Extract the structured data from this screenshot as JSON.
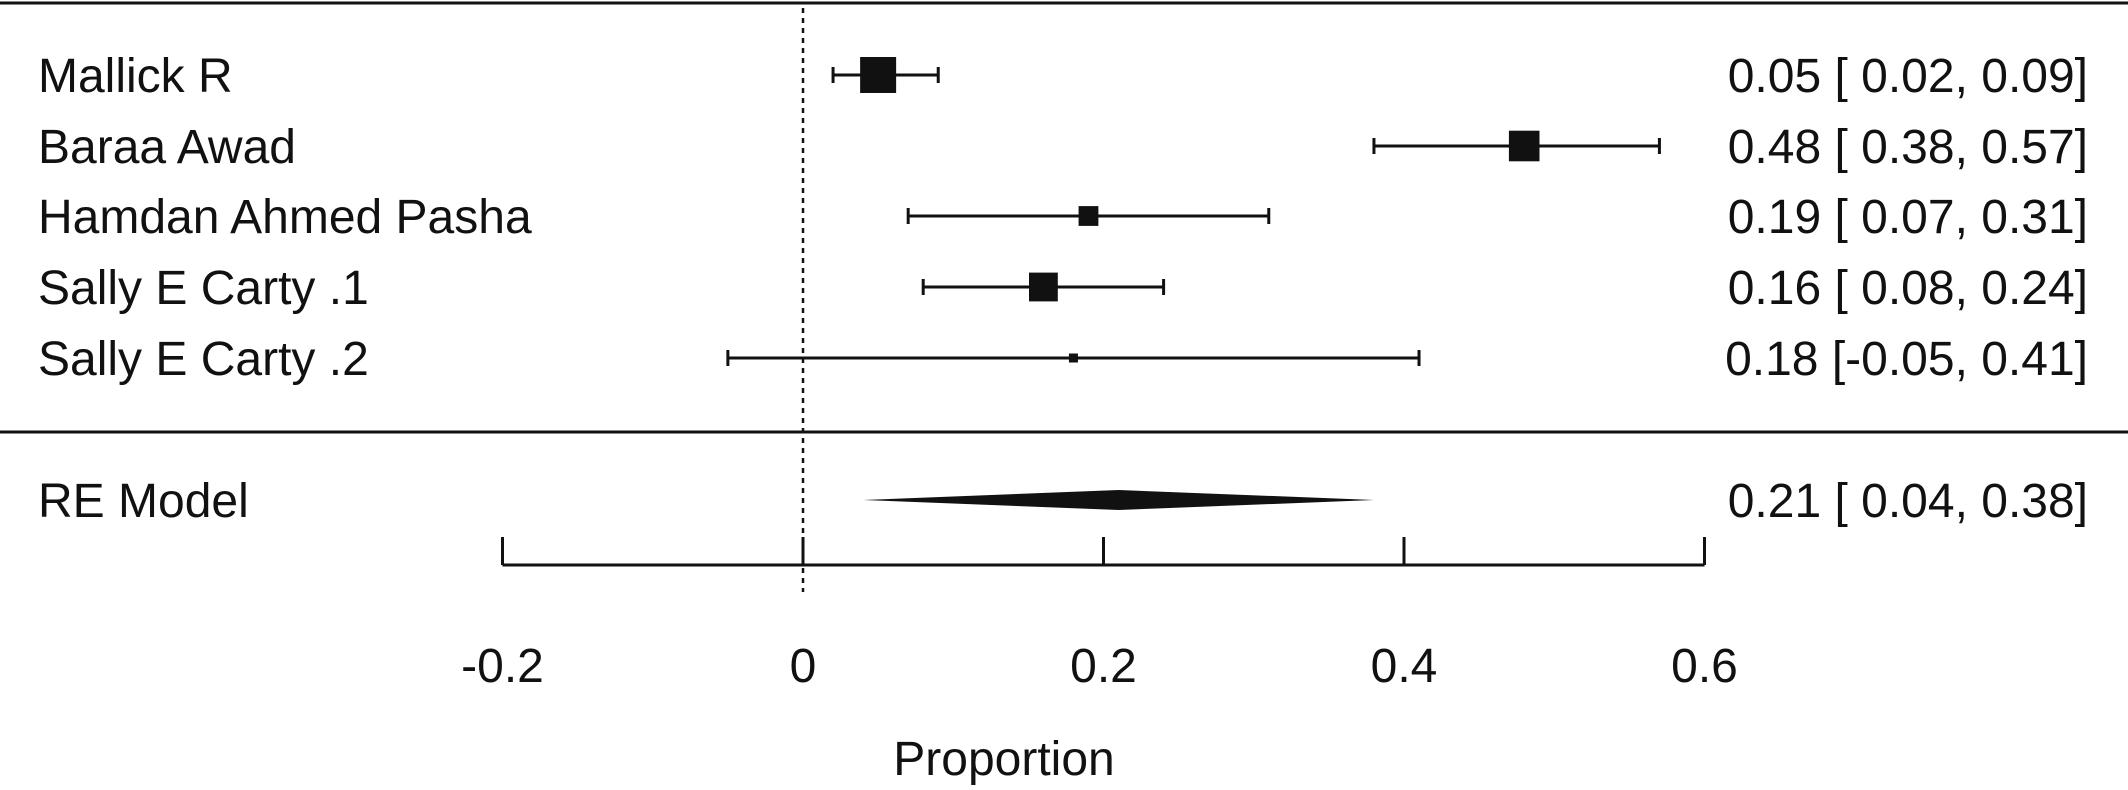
{
  "chart_data": {
    "type": "forest",
    "xlabel": "Proportion",
    "xlim": [
      -0.2,
      0.6
    ],
    "xticks": [
      -0.2,
      0,
      0.2,
      0.4,
      0.6
    ],
    "reference_line": 0,
    "studies": [
      {
        "label": "Mallick R",
        "estimate": 0.05,
        "ci_low": 0.02,
        "ci_high": 0.09,
        "weight": 1.0,
        "text": "0.05 [ 0.02, 0.09]"
      },
      {
        "label": "Baraa Awad",
        "estimate": 0.48,
        "ci_low": 0.38,
        "ci_high": 0.57,
        "weight": 0.85,
        "text": "0.48 [ 0.38, 0.57]"
      },
      {
        "label": "Hamdan Ahmed Pasha",
        "estimate": 0.19,
        "ci_low": 0.07,
        "ci_high": 0.31,
        "weight": 0.55,
        "text": "0.19 [ 0.07, 0.31]"
      },
      {
        "label": "Sally E Carty .1",
        "estimate": 0.16,
        "ci_low": 0.08,
        "ci_high": 0.24,
        "weight": 0.8,
        "text": "0.16 [ 0.08, 0.24]"
      },
      {
        "label": "Sally E Carty .2",
        "estimate": 0.18,
        "ci_low": -0.05,
        "ci_high": 0.41,
        "weight": 0.25,
        "text": "0.18 [-0.05, 0.41]"
      }
    ],
    "summary": {
      "label": "RE Model",
      "estimate": 0.21,
      "ci_low": 0.04,
      "ci_high": 0.38,
      "text": "0.21 [ 0.04, 0.38]"
    }
  }
}
